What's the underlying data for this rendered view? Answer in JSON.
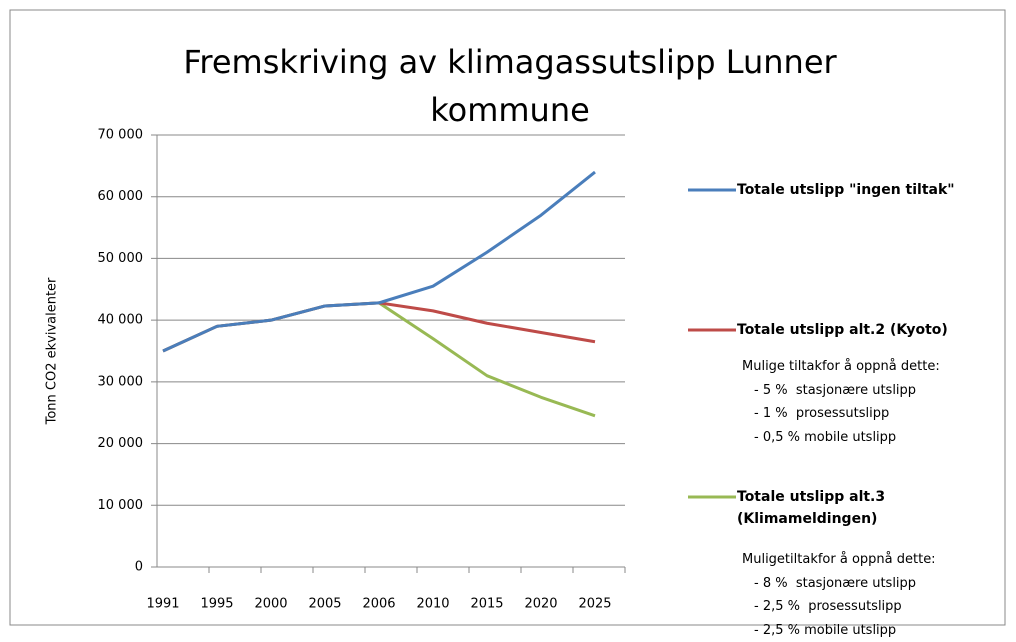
{
  "chart_data": {
    "type": "line",
    "title": "Fremskriving av klimagassutslipp Lunner kommune",
    "y_label": "Tonn CO2 ekvivalenter",
    "categories": [
      "1991",
      "1995",
      "2000",
      "2005",
      "2006",
      "2010",
      "2015",
      "2020",
      "2025"
    ],
    "series": [
      {
        "name": "Totale utslipp \"ingen tiltak\"",
        "color": "#4a7ebb",
        "values": [
          35000,
          39000,
          40000,
          42300,
          42800,
          45500,
          51000,
          57000,
          64000
        ]
      },
      {
        "name": "Totale utslipp alt.2 (Kyoto)",
        "color": "#be4b48",
        "values": [
          35000,
          39000,
          40000,
          42300,
          42800,
          41500,
          39500,
          38000,
          36500
        ]
      },
      {
        "name": "Totale utslipp alt.3 (Klimameldingen)",
        "color": "#98b954",
        "values": [
          35000,
          39000,
          40000,
          42300,
          42800,
          37000,
          31000,
          27500,
          24500
        ]
      }
    ],
    "annotations": [
      [
        "Mulige tiltakfor å oppnå dette:",
        "- 5 %  stasjonære utslipp",
        "- 1 %  prosessutslipp",
        "- 0,5 % mobile utslipp"
      ],
      [
        "Muligetiltakfor å oppnå dette:",
        "- 8 %  stasjonære utslipp",
        "- 2,5 %  prosessutslipp",
        "- 2,5 % mobile utslipp"
      ]
    ],
    "ylim": [
      0,
      70000
    ],
    "yticks": [
      0,
      {
        "value": 10000,
        "label": "10 000"
      },
      {
        "value": 20000,
        "label": "20 000"
      },
      {
        "value": 30000,
        "label": "30 000"
      },
      {
        "value": 40000,
        "label": "40 000"
      },
      {
        "value": 50000,
        "label": "50 000"
      },
      {
        "value": 60000,
        "label": "60 000"
      },
      {
        "value": 70000,
        "label": "70 000"
      }
    ],
    "grid": true
  }
}
